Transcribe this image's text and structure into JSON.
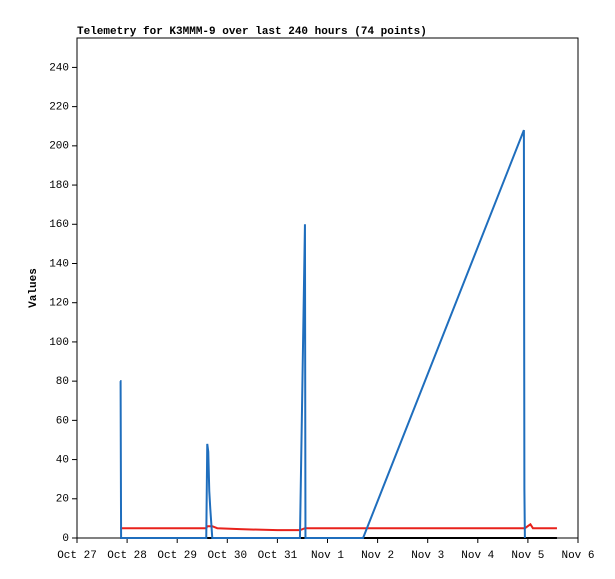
{
  "chart_data": {
    "type": "line",
    "title": "Telemetry for K3MMM-9 over last 240 hours (74 points)",
    "y_label": "Values",
    "x": [
      0.86,
      0.87,
      0.88,
      2.58,
      2.6,
      2.62,
      2.64,
      2.66,
      2.7,
      2.8,
      3.25,
      4.0,
      4.45,
      4.55,
      4.56,
      4.57,
      5.71,
      8.92,
      8.93,
      8.94,
      9.05,
      9.1,
      9.58
    ],
    "xlim": [
      0,
      10
    ],
    "xticks": [
      {
        "value": 0,
        "label": "Oct 27"
      },
      {
        "value": 1,
        "label": "Oct 28"
      },
      {
        "value": 2,
        "label": "Oct 29"
      },
      {
        "value": 3,
        "label": "Oct 30"
      },
      {
        "value": 4,
        "label": "Oct 31"
      },
      {
        "value": 5,
        "label": "Nov 1"
      },
      {
        "value": 6,
        "label": "Nov 2"
      },
      {
        "value": 7,
        "label": "Nov 3"
      },
      {
        "value": 8,
        "label": "Nov 4"
      },
      {
        "value": 9,
        "label": "Nov 5"
      },
      {
        "value": 10,
        "label": "Nov 6"
      }
    ],
    "ylim": [
      0,
      255
    ],
    "yticks": [
      0,
      20,
      40,
      60,
      80,
      100,
      120,
      140,
      160,
      180,
      200,
      220,
      240
    ],
    "series": [
      {
        "color": "#000000",
        "values": [
          0,
          0,
          0,
          0,
          0,
          0,
          0,
          0,
          0,
          0,
          0,
          0,
          0,
          0,
          0,
          0,
          0,
          0,
          0,
          0,
          0,
          0,
          0
        ]
      },
      {
        "color": "#e8221c",
        "values": [
          5,
          5,
          5,
          5,
          6,
          6,
          6,
          6,
          6,
          5,
          4.5,
          4,
          4,
          5,
          5,
          5,
          5,
          5,
          5,
          5,
          7,
          5,
          5
        ]
      },
      {
        "color": "#1f6ebd",
        "values": [
          80,
          80,
          0,
          0,
          48,
          44,
          24,
          15,
          0,
          0,
          0,
          0,
          0,
          160,
          0,
          0,
          0,
          208,
          25,
          0,
          null,
          null,
          null
        ]
      }
    ]
  }
}
